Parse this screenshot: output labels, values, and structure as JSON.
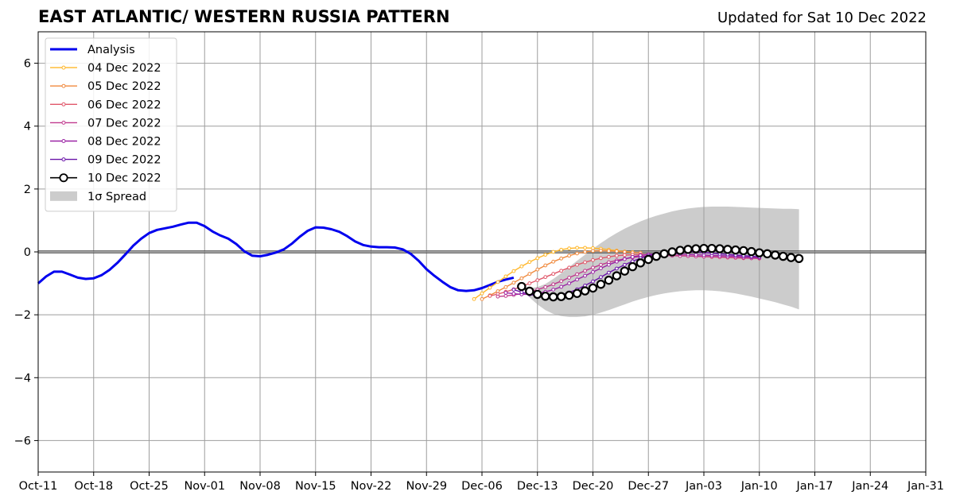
{
  "header": {
    "title": "EAST ATLANTIC/ WESTERN RUSSIA PATTERN",
    "updated": "Updated for Sat 10 Dec 2022"
  },
  "chart_data": {
    "type": "line",
    "title": "EAST ATLANTIC/ WESTERN RUSSIA PATTERN",
    "xlabel": "",
    "ylabel": "",
    "x_axis": {
      "type": "date",
      "range": [
        "2022-10-11",
        "2023-01-31"
      ],
      "tick_dates": [
        "2022-10-11",
        "2022-10-18",
        "2022-10-25",
        "2022-11-01",
        "2022-11-08",
        "2022-11-15",
        "2022-11-22",
        "2022-11-29",
        "2022-12-06",
        "2022-12-13",
        "2022-12-20",
        "2022-12-27",
        "2023-01-03",
        "2023-01-10",
        "2023-01-17",
        "2023-01-24",
        "2023-01-31"
      ],
      "tick_labels": [
        "Oct-11",
        "Oct-18",
        "Oct-25",
        "Nov-01",
        "Nov-08",
        "Nov-15",
        "Nov-22",
        "Nov-29",
        "Dec-06",
        "Dec-13",
        "Dec-20",
        "Dec-27",
        "Jan-03",
        "Jan-10",
        "Jan-17",
        "Jan-24",
        "Jan-31"
      ]
    },
    "y_axis": {
      "range": [
        -7,
        7
      ],
      "ticks": [
        -6,
        -4,
        -2,
        0,
        2,
        4,
        6
      ],
      "tick_labels": [
        "−6",
        "−4",
        "−2",
        "0",
        "2",
        "4",
        "6"
      ]
    },
    "grid": true,
    "legend_position": "top-left",
    "series": [
      {
        "name": "Analysis",
        "color": "#0000ee",
        "style": "thick-line",
        "points": [
          [
            "2022-10-11",
            -1.0
          ],
          [
            "2022-10-12",
            -0.78
          ],
          [
            "2022-10-13",
            -0.63
          ],
          [
            "2022-10-14",
            -0.63
          ],
          [
            "2022-10-15",
            -0.72
          ],
          [
            "2022-10-16",
            -0.82
          ],
          [
            "2022-10-17",
            -0.86
          ],
          [
            "2022-10-18",
            -0.84
          ],
          [
            "2022-10-19",
            -0.74
          ],
          [
            "2022-10-20",
            -0.57
          ],
          [
            "2022-10-21",
            -0.35
          ],
          [
            "2022-10-22",
            -0.08
          ],
          [
            "2022-10-23",
            0.2
          ],
          [
            "2022-10-24",
            0.42
          ],
          [
            "2022-10-25",
            0.6
          ],
          [
            "2022-10-26",
            0.7
          ],
          [
            "2022-10-27",
            0.75
          ],
          [
            "2022-10-28",
            0.8
          ],
          [
            "2022-10-29",
            0.87
          ],
          [
            "2022-10-30",
            0.93
          ],
          [
            "2022-10-31",
            0.93
          ],
          [
            "2022-11-01",
            0.82
          ],
          [
            "2022-11-02",
            0.65
          ],
          [
            "2022-11-03",
            0.52
          ],
          [
            "2022-11-04",
            0.42
          ],
          [
            "2022-11-05",
            0.25
          ],
          [
            "2022-11-06",
            0.02
          ],
          [
            "2022-11-07",
            -0.12
          ],
          [
            "2022-11-08",
            -0.14
          ],
          [
            "2022-11-09",
            -0.09
          ],
          [
            "2022-11-10",
            -0.02
          ],
          [
            "2022-11-11",
            0.08
          ],
          [
            "2022-11-12",
            0.26
          ],
          [
            "2022-11-13",
            0.48
          ],
          [
            "2022-11-14",
            0.67
          ],
          [
            "2022-11-15",
            0.78
          ],
          [
            "2022-11-16",
            0.77
          ],
          [
            "2022-11-17",
            0.72
          ],
          [
            "2022-11-18",
            0.64
          ],
          [
            "2022-11-19",
            0.5
          ],
          [
            "2022-11-20",
            0.33
          ],
          [
            "2022-11-21",
            0.22
          ],
          [
            "2022-11-22",
            0.17
          ],
          [
            "2022-11-23",
            0.15
          ],
          [
            "2022-11-24",
            0.15
          ],
          [
            "2022-11-25",
            0.14
          ],
          [
            "2022-11-26",
            0.08
          ],
          [
            "2022-11-27",
            -0.06
          ],
          [
            "2022-11-28",
            -0.28
          ],
          [
            "2022-11-29",
            -0.55
          ],
          [
            "2022-11-30",
            -0.76
          ],
          [
            "2022-12-01",
            -0.95
          ],
          [
            "2022-12-02",
            -1.12
          ],
          [
            "2022-12-03",
            -1.22
          ],
          [
            "2022-12-04",
            -1.24
          ],
          [
            "2022-12-05",
            -1.22
          ],
          [
            "2022-12-06",
            -1.15
          ],
          [
            "2022-12-07",
            -1.05
          ],
          [
            "2022-12-08",
            -0.95
          ],
          [
            "2022-12-09",
            -0.88
          ],
          [
            "2022-12-10",
            -0.82
          ]
        ]
      },
      {
        "name": "04 Dec 2022",
        "color": "#ffb627",
        "style": "small-markers",
        "start": "2022-12-05",
        "values": [
          -1.5,
          -1.32,
          -1.14,
          -0.96,
          -0.78,
          -0.61,
          -0.46,
          -0.32,
          -0.2,
          -0.09,
          0.0,
          0.07,
          0.11,
          0.13,
          0.13,
          0.12,
          0.1,
          0.07,
          0.04,
          0.01,
          -0.01
        ]
      },
      {
        "name": "05 Dec 2022",
        "color": "#f08a3e",
        "style": "small-markers",
        "start": "2022-12-06",
        "values": [
          -1.5,
          -1.38,
          -1.25,
          -1.12,
          -0.98,
          -0.84,
          -0.7,
          -0.56,
          -0.43,
          -0.31,
          -0.21,
          -0.12,
          -0.05,
          0.0,
          0.03,
          0.04,
          0.03,
          0.02,
          0.0,
          -0.02,
          -0.03
        ]
      },
      {
        "name": "06 Dec 2022",
        "color": "#e0576a",
        "style": "small-markers",
        "start": "2022-12-07",
        "values": [
          -1.4,
          -1.34,
          -1.27,
          -1.19,
          -1.1,
          -1.0,
          -0.9,
          -0.8,
          -0.7,
          -0.6,
          -0.5,
          -0.41,
          -0.33,
          -0.26,
          -0.2,
          -0.16,
          -0.12,
          -0.1,
          -0.09,
          -0.08,
          -0.08,
          -0.09,
          -0.1,
          -0.11,
          -0.12,
          -0.13,
          -0.14,
          -0.15,
          -0.16,
          -0.17,
          -0.18,
          -0.19,
          -0.2,
          -0.2,
          -0.21
        ]
      },
      {
        "name": "07 Dec 2022",
        "color": "#c0388d",
        "style": "small-markers",
        "start": "2022-12-08",
        "values": [
          -1.42,
          -1.4,
          -1.37,
          -1.33,
          -1.27,
          -1.2,
          -1.12,
          -1.03,
          -0.93,
          -0.82,
          -0.71,
          -0.6,
          -0.5,
          -0.41,
          -0.33,
          -0.27,
          -0.22,
          -0.18,
          -0.15,
          -0.13,
          -0.12,
          -0.12,
          -0.12,
          -0.13,
          -0.13,
          -0.14,
          -0.15,
          -0.15,
          -0.16,
          -0.17,
          -0.18,
          -0.19,
          -0.2,
          -0.2
        ]
      },
      {
        "name": "08 Dec 2022",
        "color": "#9a23a5",
        "style": "small-markers",
        "start": "2022-12-09",
        "values": [
          -1.3,
          -1.33,
          -1.35,
          -1.35,
          -1.32,
          -1.27,
          -1.2,
          -1.11,
          -1.0,
          -0.88,
          -0.76,
          -0.64,
          -0.52,
          -0.41,
          -0.31,
          -0.23,
          -0.16,
          -0.11,
          -0.08,
          -0.06,
          -0.06,
          -0.06,
          -0.07,
          -0.08,
          -0.09,
          -0.1,
          -0.11,
          -0.12,
          -0.13,
          -0.14,
          -0.16,
          -0.17,
          -0.18
        ]
      },
      {
        "name": "09 Dec 2022",
        "color": "#6a14a9",
        "style": "small-markers",
        "start": "2022-12-10",
        "values": [
          -1.2,
          -1.28,
          -1.35,
          -1.4,
          -1.42,
          -1.41,
          -1.37,
          -1.29,
          -1.19,
          -1.07,
          -0.94,
          -0.8,
          -0.66,
          -0.53,
          -0.41,
          -0.3,
          -0.2,
          -0.12,
          -0.06,
          -0.02,
          0.0,
          0.01,
          0.01,
          0.0,
          -0.02,
          -0.04,
          -0.06,
          -0.08,
          -0.1,
          -0.12,
          -0.14,
          -0.16
        ]
      },
      {
        "name": "10 Dec 2022",
        "color": "#000000",
        "style": "large-markers",
        "start": "2022-12-11",
        "values": [
          -1.1,
          -1.25,
          -1.35,
          -1.41,
          -1.43,
          -1.42,
          -1.38,
          -1.32,
          -1.24,
          -1.15,
          -1.03,
          -0.9,
          -0.76,
          -0.61,
          -0.47,
          -0.35,
          -0.24,
          -0.14,
          -0.06,
          0.0,
          0.05,
          0.08,
          0.1,
          0.11,
          0.11,
          0.1,
          0.08,
          0.06,
          0.04,
          0.01,
          -0.03,
          -0.06,
          -0.1,
          -0.14,
          -0.18,
          -0.21
        ]
      }
    ],
    "spread": {
      "name": "1σ Spread",
      "color": "#cccccc",
      "start": "2022-12-11",
      "upper": [
        -1.1,
        -1.15,
        -1.12,
        -1.02,
        -0.86,
        -0.68,
        -0.48,
        -0.28,
        -0.09,
        0.1,
        0.28,
        0.45,
        0.6,
        0.74,
        0.86,
        0.97,
        1.07,
        1.15,
        1.22,
        1.29,
        1.34,
        1.38,
        1.41,
        1.43,
        1.44,
        1.44,
        1.44,
        1.43,
        1.42,
        1.41,
        1.4,
        1.39,
        1.38,
        1.37,
        1.37,
        1.36
      ],
      "lower": [
        -1.1,
        -1.45,
        -1.67,
        -1.85,
        -1.97,
        -2.04,
        -2.07,
        -2.07,
        -2.05,
        -2.0,
        -1.93,
        -1.85,
        -1.76,
        -1.67,
        -1.58,
        -1.5,
        -1.43,
        -1.37,
        -1.32,
        -1.28,
        -1.25,
        -1.23,
        -1.22,
        -1.22,
        -1.23,
        -1.25,
        -1.28,
        -1.32,
        -1.37,
        -1.42,
        -1.48,
        -1.54,
        -1.6,
        -1.67,
        -1.74,
        -1.83
      ]
    }
  }
}
